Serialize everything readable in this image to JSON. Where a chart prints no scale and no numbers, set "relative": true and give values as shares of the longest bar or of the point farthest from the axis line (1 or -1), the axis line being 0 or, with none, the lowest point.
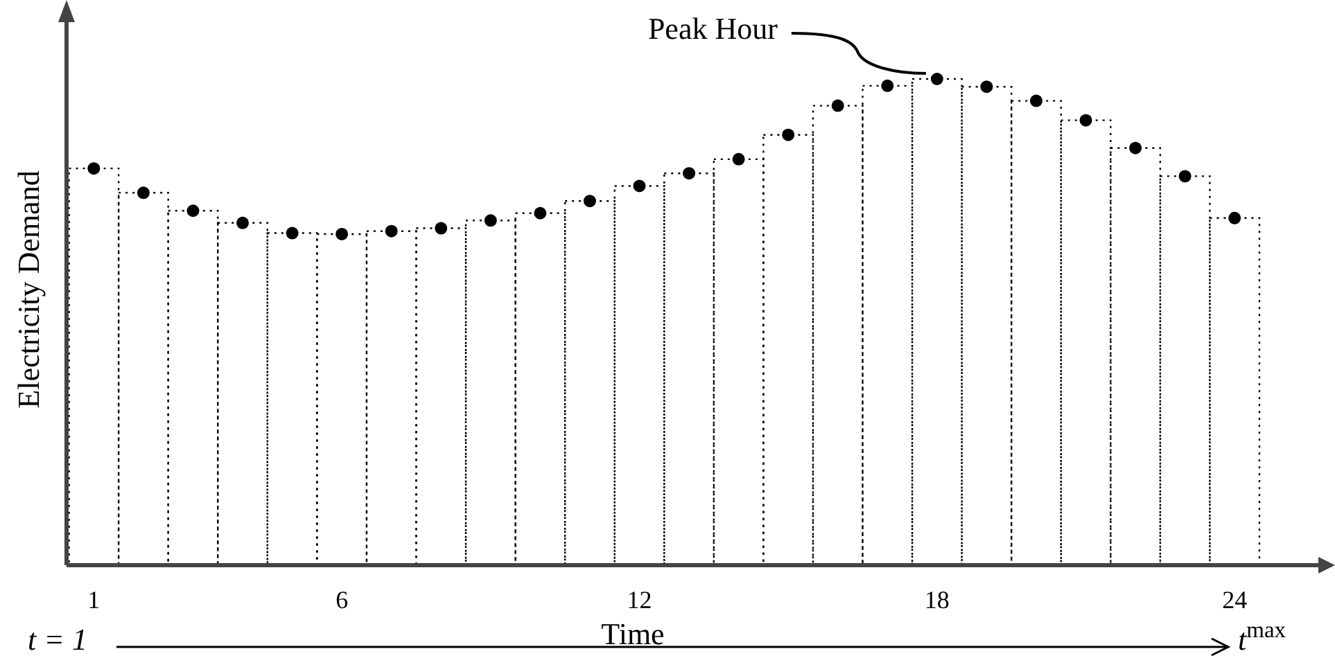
{
  "chart_data": {
    "type": "bar",
    "relative": true,
    "ylabel": "Electricity Demand",
    "xlabel": "Time",
    "x": [
      1,
      2,
      3,
      4,
      5,
      6,
      7,
      8,
      9,
      10,
      11,
      12,
      13,
      14,
      15,
      16,
      17,
      18,
      19,
      20,
      21,
      22,
      23,
      24
    ],
    "xlim": [
      0.45,
      25.8
    ],
    "xticks": [
      1,
      6,
      12,
      18,
      24
    ],
    "series": [
      {
        "color": "#000000",
        "line_style": "dotted",
        "values": [
          0.816,
          0.766,
          0.729,
          0.704,
          0.683,
          0.681,
          0.687,
          0.693,
          0.709,
          0.724,
          0.749,
          0.78,
          0.806,
          0.835,
          0.885,
          0.945,
          0.986,
          1,
          0.984,
          0.955,
          0.915,
          0.858,
          0.8,
          0.714
        ]
      },
      {
        "type": "scatter",
        "color": "#000000",
        "marker": "circle",
        "values": [
          0.816,
          0.766,
          0.729,
          0.704,
          0.683,
          0.681,
          0.687,
          0.693,
          0.709,
          0.724,
          0.749,
          0.78,
          0.806,
          0.835,
          0.885,
          0.945,
          0.986,
          1,
          0.984,
          0.955,
          0.915,
          0.858,
          0.8,
          0.714
        ]
      }
    ],
    "annotations": [
      {
        "text": "Peak Hour",
        "x": 18,
        "y": 1
      },
      "t = 1",
      "t$^{max}$"
    ]
  }
}
